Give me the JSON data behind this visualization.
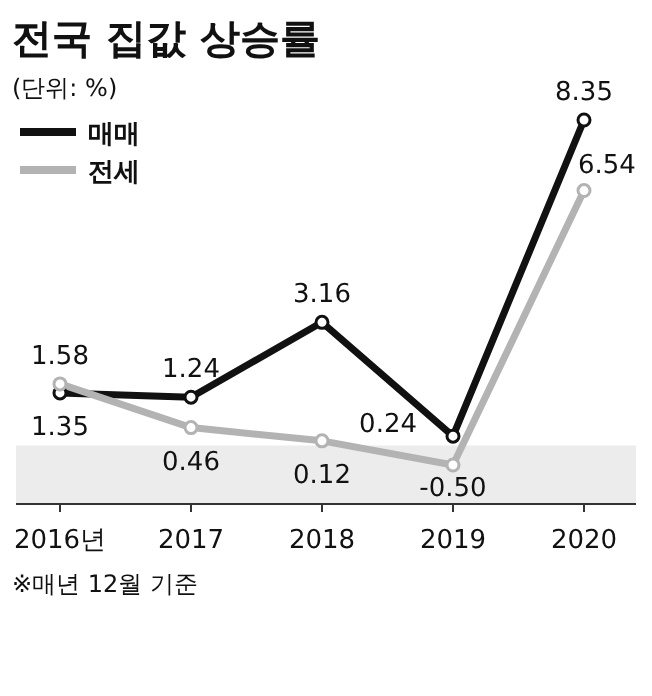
{
  "chart_data": {
    "type": "line",
    "title": "전국 집값 상승률",
    "subtitle": "(단위: %)",
    "annotations": [
      "※매년 12월 기준"
    ],
    "categories": [
      "2016년",
      "2017",
      "2018",
      "2019",
      "2020"
    ],
    "series": [
      {
        "name": "매매",
        "color": "#111111",
        "values": [
          1.35,
          1.24,
          3.16,
          0.24,
          8.35
        ],
        "value_labels": [
          "1.35",
          "1.24",
          "3.16",
          "0.24",
          "8.35"
        ]
      },
      {
        "name": "전세",
        "color": "#b3b3b3",
        "values": [
          1.58,
          0.46,
          0.12,
          -0.5,
          6.54
        ],
        "value_labels": [
          "1.58",
          "0.46",
          "0.12",
          "-0.50",
          "6.54"
        ]
      }
    ],
    "marker": "circle",
    "legend": "top left",
    "bands": [
      {
        "axis": "y",
        "from": -1.5,
        "to": 0,
        "color": "#ececec"
      }
    ]
  }
}
